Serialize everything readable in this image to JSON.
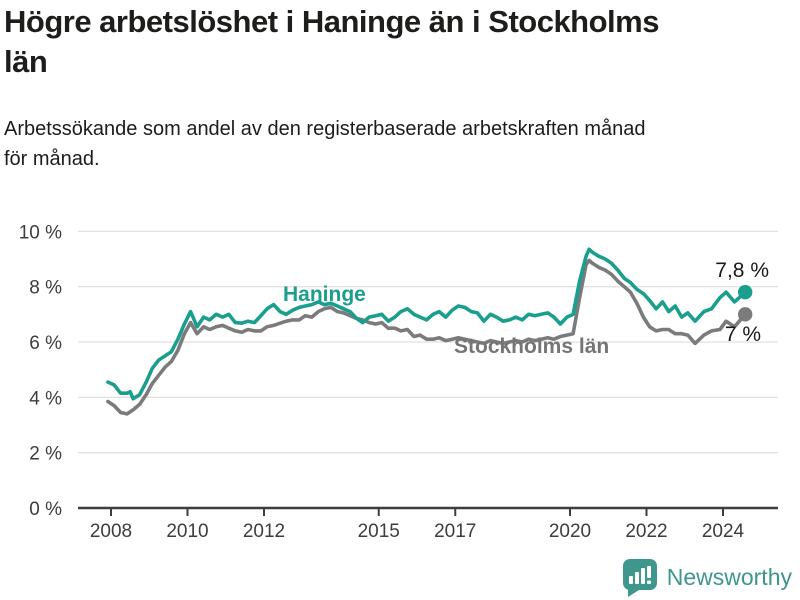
{
  "header": {
    "title": "Högre arbetslöshet i Haninge än i Stockholms\nlän",
    "subtitle": "Arbetssökande som andel av den registerbaserade arbetskraften månad\nför månad."
  },
  "footer": {
    "brand": "Newsworthy",
    "logo_icon": "bar-chart-speech-bubble-icon",
    "brand_color": "#3F968D"
  },
  "chart_data": {
    "type": "line",
    "title": "Högre arbetslöshet i Haninge än i Stockholms län",
    "subtitle": "Arbetssökande som andel av den registerbaserade arbetskraften månad för månad.",
    "unit": "%",
    "grid": "horizontal",
    "legend_position": "inline-labels",
    "x_axis": {
      "ticks": [
        2008,
        2010,
        2012,
        2015,
        2017,
        2020,
        2022,
        2024
      ],
      "range": [
        2007.9,
        2024.6
      ]
    },
    "y_axis": {
      "tick_values": [
        0,
        2,
        4,
        6,
        8,
        10
      ],
      "tick_labels": [
        "0 %",
        "2 %",
        "4 %",
        "6 %",
        "8 %",
        "10 %"
      ],
      "range": [
        0,
        10
      ]
    },
    "series": [
      {
        "name": "Stockholms län",
        "color": "#7B7B7B",
        "end_label": "7 %",
        "end_value": 7.0,
        "points": [
          [
            2007.92,
            3.85
          ],
          [
            2008.08,
            3.7
          ],
          [
            2008.25,
            3.45
          ],
          [
            2008.42,
            3.4
          ],
          [
            2008.58,
            3.55
          ],
          [
            2008.75,
            3.75
          ],
          [
            2008.92,
            4.1
          ],
          [
            2009.08,
            4.5
          ],
          [
            2009.25,
            4.8
          ],
          [
            2009.42,
            5.1
          ],
          [
            2009.58,
            5.3
          ],
          [
            2009.75,
            5.7
          ],
          [
            2009.92,
            6.3
          ],
          [
            2010.08,
            6.7
          ],
          [
            2010.25,
            6.3
          ],
          [
            2010.42,
            6.55
          ],
          [
            2010.58,
            6.45
          ],
          [
            2010.75,
            6.55
          ],
          [
            2010.92,
            6.6
          ],
          [
            2011.08,
            6.5
          ],
          [
            2011.25,
            6.4
          ],
          [
            2011.42,
            6.35
          ],
          [
            2011.58,
            6.45
          ],
          [
            2011.75,
            6.4
          ],
          [
            2011.92,
            6.4
          ],
          [
            2012.08,
            6.55
          ],
          [
            2012.25,
            6.6
          ],
          [
            2012.42,
            6.68
          ],
          [
            2012.58,
            6.75
          ],
          [
            2012.75,
            6.8
          ],
          [
            2012.92,
            6.8
          ],
          [
            2013.08,
            6.95
          ],
          [
            2013.25,
            6.9
          ],
          [
            2013.42,
            7.1
          ],
          [
            2013.58,
            7.2
          ],
          [
            2013.75,
            7.25
          ],
          [
            2013.92,
            7.1
          ],
          [
            2014.08,
            7.05
          ],
          [
            2014.25,
            6.95
          ],
          [
            2014.42,
            6.85
          ],
          [
            2014.58,
            6.8
          ],
          [
            2014.75,
            6.7
          ],
          [
            2014.92,
            6.65
          ],
          [
            2015.08,
            6.7
          ],
          [
            2015.25,
            6.5
          ],
          [
            2015.42,
            6.5
          ],
          [
            2015.58,
            6.4
          ],
          [
            2015.75,
            6.45
          ],
          [
            2015.92,
            6.2
          ],
          [
            2016.08,
            6.25
          ],
          [
            2016.25,
            6.1
          ],
          [
            2016.42,
            6.1
          ],
          [
            2016.58,
            6.15
          ],
          [
            2016.75,
            6.05
          ],
          [
            2016.92,
            6.1
          ],
          [
            2017.08,
            6.15
          ],
          [
            2017.25,
            6.1
          ],
          [
            2017.42,
            6.05
          ],
          [
            2017.58,
            6.0
          ],
          [
            2017.75,
            5.95
          ],
          [
            2017.92,
            6.05
          ],
          [
            2018.08,
            6.0
          ],
          [
            2018.25,
            5.95
          ],
          [
            2018.42,
            6.0
          ],
          [
            2018.58,
            6.05
          ],
          [
            2018.75,
            6.0
          ],
          [
            2018.92,
            6.1
          ],
          [
            2019.08,
            6.05
          ],
          [
            2019.25,
            6.1
          ],
          [
            2019.42,
            6.15
          ],
          [
            2019.58,
            6.1
          ],
          [
            2019.75,
            6.2
          ],
          [
            2019.92,
            6.25
          ],
          [
            2020.08,
            6.3
          ],
          [
            2020.25,
            7.6
          ],
          [
            2020.42,
            8.8
          ],
          [
            2020.5,
            8.95
          ],
          [
            2020.58,
            8.85
          ],
          [
            2020.75,
            8.7
          ],
          [
            2020.92,
            8.6
          ],
          [
            2021.08,
            8.45
          ],
          [
            2021.25,
            8.2
          ],
          [
            2021.42,
            8.0
          ],
          [
            2021.58,
            7.8
          ],
          [
            2021.75,
            7.4
          ],
          [
            2021.92,
            6.9
          ],
          [
            2022.08,
            6.55
          ],
          [
            2022.25,
            6.4
          ],
          [
            2022.42,
            6.45
          ],
          [
            2022.58,
            6.45
          ],
          [
            2022.75,
            6.3
          ],
          [
            2022.92,
            6.3
          ],
          [
            2023.08,
            6.25
          ],
          [
            2023.27,
            5.95
          ],
          [
            2023.5,
            6.25
          ],
          [
            2023.7,
            6.4
          ],
          [
            2023.92,
            6.45
          ],
          [
            2024.08,
            6.75
          ],
          [
            2024.3,
            6.55
          ],
          [
            2024.58,
            7.0
          ]
        ]
      },
      {
        "name": "Haninge",
        "color": "#1A9E8E",
        "end_label": "7,8 %",
        "end_value": 7.8,
        "points": [
          [
            2007.92,
            4.55
          ],
          [
            2008.08,
            4.45
          ],
          [
            2008.25,
            4.15
          ],
          [
            2008.42,
            4.15
          ],
          [
            2008.5,
            4.2
          ],
          [
            2008.58,
            3.95
          ],
          [
            2008.75,
            4.1
          ],
          [
            2008.92,
            4.55
          ],
          [
            2009.08,
            5.05
          ],
          [
            2009.25,
            5.35
          ],
          [
            2009.42,
            5.5
          ],
          [
            2009.58,
            5.65
          ],
          [
            2009.75,
            6.1
          ],
          [
            2009.92,
            6.65
          ],
          [
            2010.08,
            7.1
          ],
          [
            2010.25,
            6.55
          ],
          [
            2010.42,
            6.9
          ],
          [
            2010.58,
            6.8
          ],
          [
            2010.75,
            7.0
          ],
          [
            2010.92,
            6.9
          ],
          [
            2011.08,
            7.0
          ],
          [
            2011.25,
            6.7
          ],
          [
            2011.42,
            6.68
          ],
          [
            2011.58,
            6.75
          ],
          [
            2011.75,
            6.7
          ],
          [
            2011.92,
            6.95
          ],
          [
            2012.08,
            7.2
          ],
          [
            2012.25,
            7.35
          ],
          [
            2012.42,
            7.1
          ],
          [
            2012.58,
            7.0
          ],
          [
            2012.75,
            7.15
          ],
          [
            2012.92,
            7.25
          ],
          [
            2013.08,
            7.3
          ],
          [
            2013.25,
            7.35
          ],
          [
            2013.42,
            7.45
          ],
          [
            2013.58,
            7.35
          ],
          [
            2013.75,
            7.4
          ],
          [
            2013.92,
            7.3
          ],
          [
            2014.08,
            7.2
          ],
          [
            2014.25,
            7.1
          ],
          [
            2014.42,
            6.85
          ],
          [
            2014.58,
            6.7
          ],
          [
            2014.75,
            6.9
          ],
          [
            2014.92,
            6.95
          ],
          [
            2015.08,
            7.0
          ],
          [
            2015.25,
            6.75
          ],
          [
            2015.42,
            6.9
          ],
          [
            2015.58,
            7.1
          ],
          [
            2015.75,
            7.2
          ],
          [
            2015.92,
            7.0
          ],
          [
            2016.08,
            6.9
          ],
          [
            2016.25,
            6.8
          ],
          [
            2016.42,
            7.0
          ],
          [
            2016.58,
            7.1
          ],
          [
            2016.75,
            6.9
          ],
          [
            2016.92,
            7.15
          ],
          [
            2017.08,
            7.3
          ],
          [
            2017.25,
            7.25
          ],
          [
            2017.42,
            7.1
          ],
          [
            2017.58,
            7.05
          ],
          [
            2017.75,
            6.75
          ],
          [
            2017.92,
            7.0
          ],
          [
            2018.08,
            6.9
          ],
          [
            2018.25,
            6.75
          ],
          [
            2018.42,
            6.8
          ],
          [
            2018.58,
            6.9
          ],
          [
            2018.75,
            6.8
          ],
          [
            2018.92,
            7.0
          ],
          [
            2019.08,
            6.95
          ],
          [
            2019.25,
            7.0
          ],
          [
            2019.42,
            7.05
          ],
          [
            2019.58,
            6.9
          ],
          [
            2019.75,
            6.65
          ],
          [
            2019.92,
            6.9
          ],
          [
            2020.08,
            7.0
          ],
          [
            2020.25,
            8.2
          ],
          [
            2020.42,
            9.1
          ],
          [
            2020.5,
            9.35
          ],
          [
            2020.58,
            9.25
          ],
          [
            2020.75,
            9.1
          ],
          [
            2020.92,
            9.0
          ],
          [
            2021.08,
            8.85
          ],
          [
            2021.25,
            8.6
          ],
          [
            2021.42,
            8.3
          ],
          [
            2021.58,
            8.15
          ],
          [
            2021.75,
            7.9
          ],
          [
            2021.92,
            7.75
          ],
          [
            2022.08,
            7.5
          ],
          [
            2022.25,
            7.2
          ],
          [
            2022.42,
            7.45
          ],
          [
            2022.58,
            7.1
          ],
          [
            2022.75,
            7.3
          ],
          [
            2022.92,
            6.9
          ],
          [
            2023.08,
            7.05
          ],
          [
            2023.27,
            6.75
          ],
          [
            2023.5,
            7.1
          ],
          [
            2023.7,
            7.2
          ],
          [
            2023.92,
            7.6
          ],
          [
            2024.08,
            7.8
          ],
          [
            2024.3,
            7.45
          ],
          [
            2024.58,
            7.8
          ]
        ]
      }
    ]
  }
}
